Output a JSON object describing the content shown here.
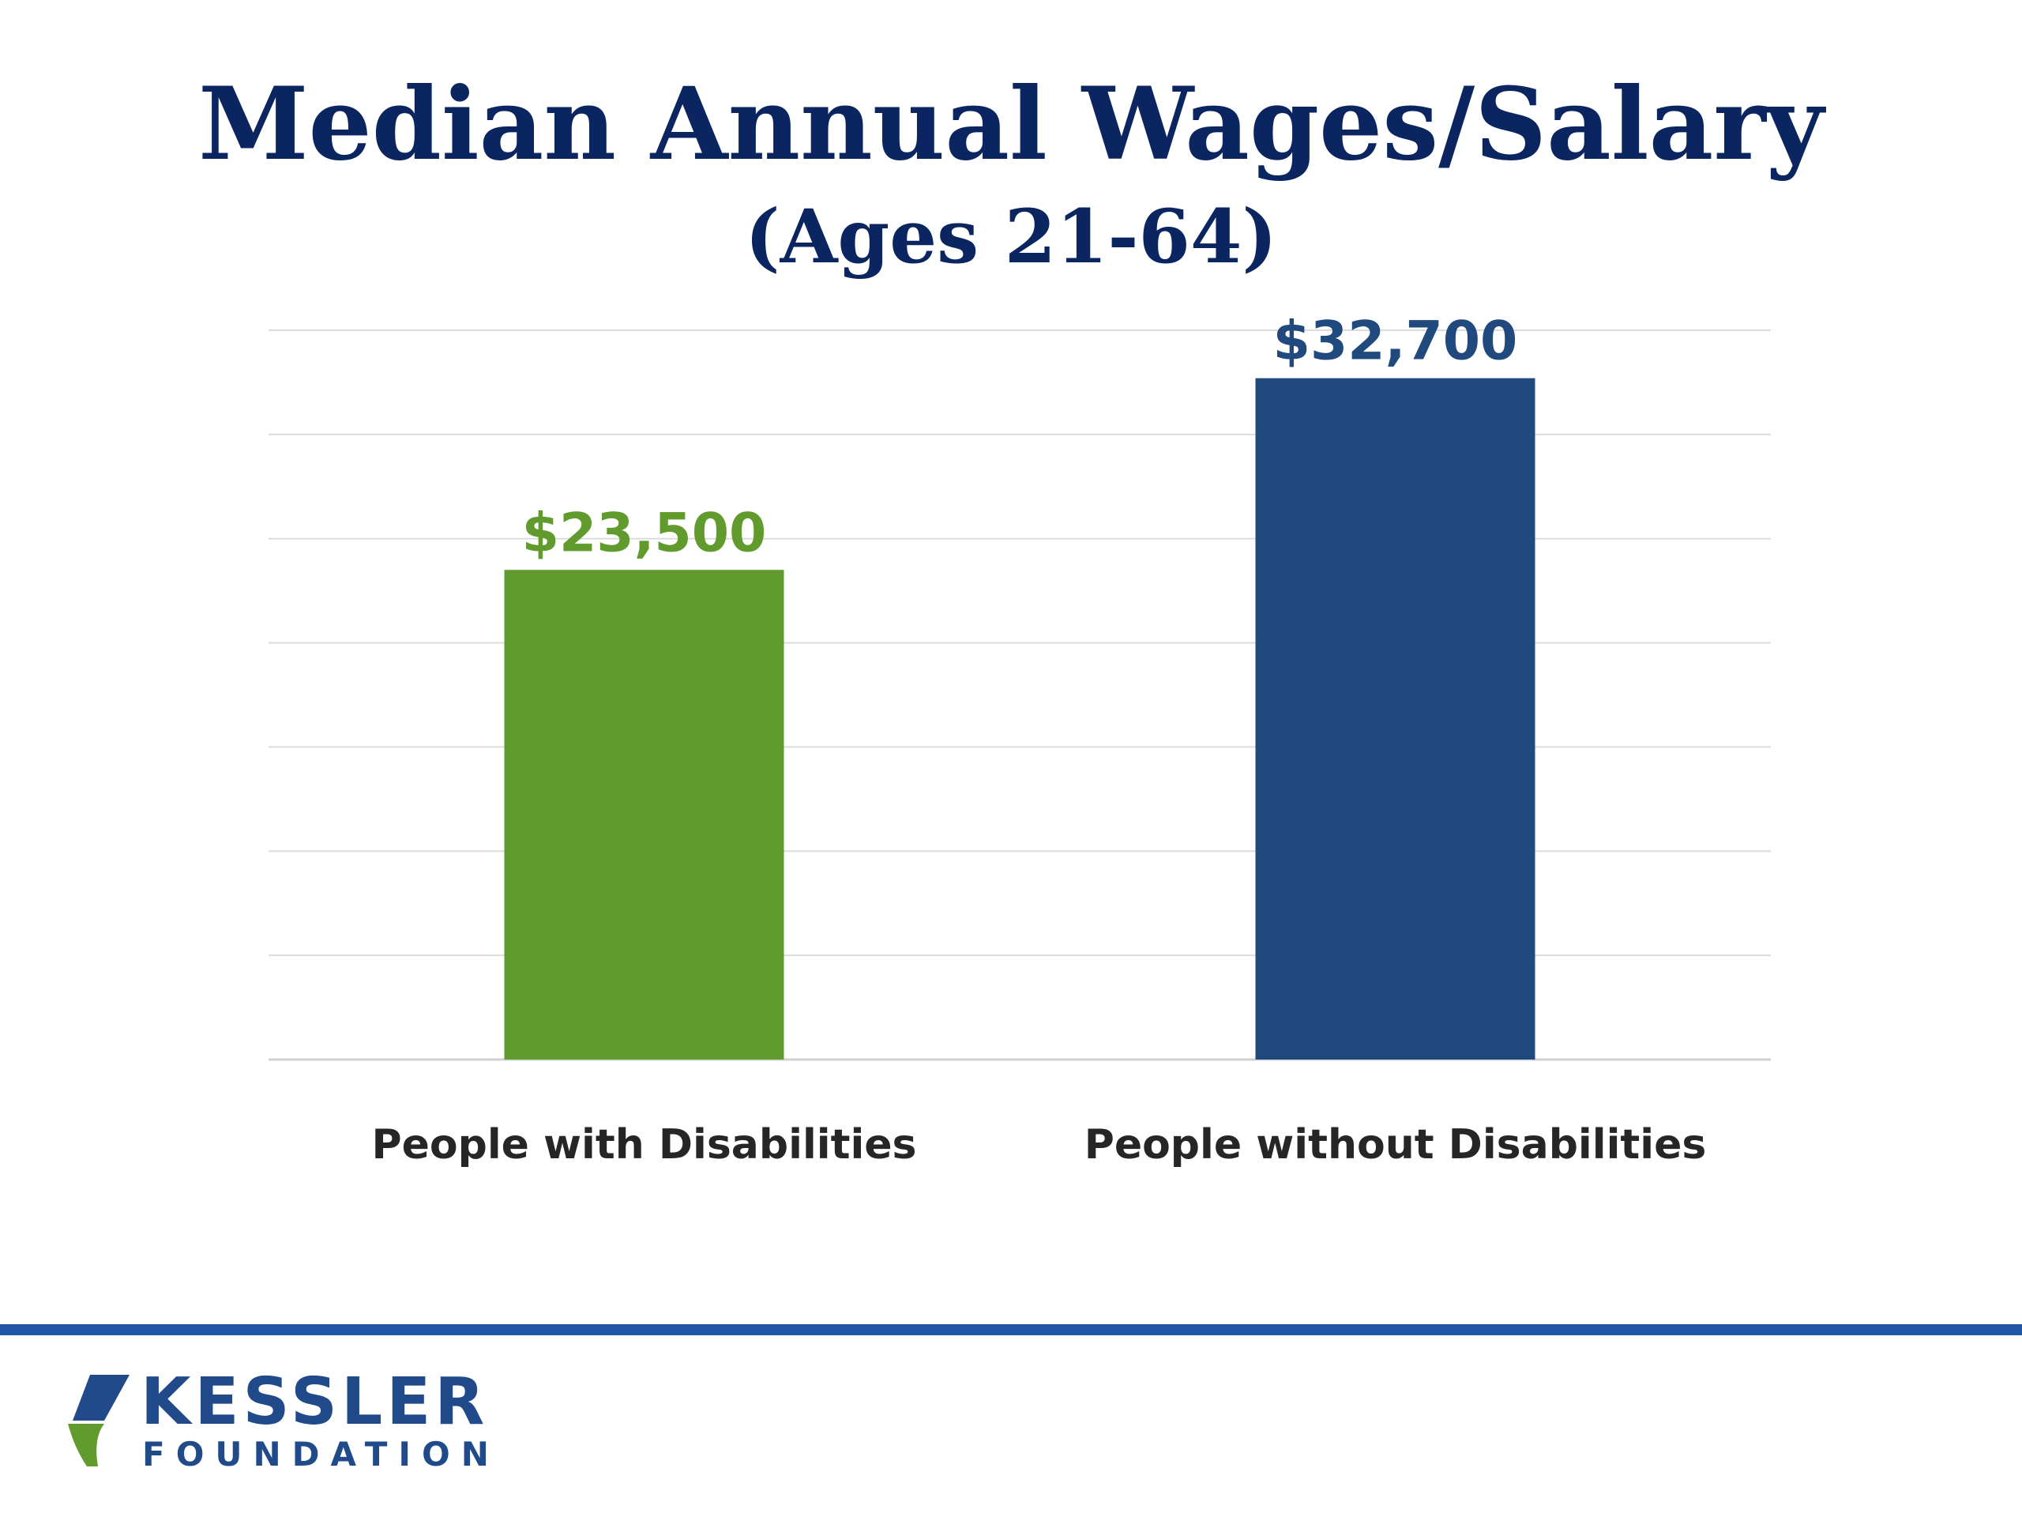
{
  "header": {
    "title": "Median Annual Wages/Salary",
    "subtitle": "(Ages 21-64)"
  },
  "chart_data": {
    "type": "bar",
    "title": "Median Annual Wages/Salary",
    "subtitle": "(Ages 21-64)",
    "categories": [
      "People with Disabilities",
      "People without Disabilities"
    ],
    "values": [
      23500,
      32700
    ],
    "data_labels": [
      "$23,500",
      "$32,700"
    ],
    "colors": [
      "#629b2d",
      "#204a7d"
    ],
    "ylim": [
      0,
      35000
    ],
    "grid": true,
    "legend": "none",
    "xlabel": "",
    "ylabel": ""
  },
  "footer": {
    "logo_line1": "KESSLER",
    "logo_line2": "FOUNDATION",
    "rule_color": "#1f57a6"
  }
}
